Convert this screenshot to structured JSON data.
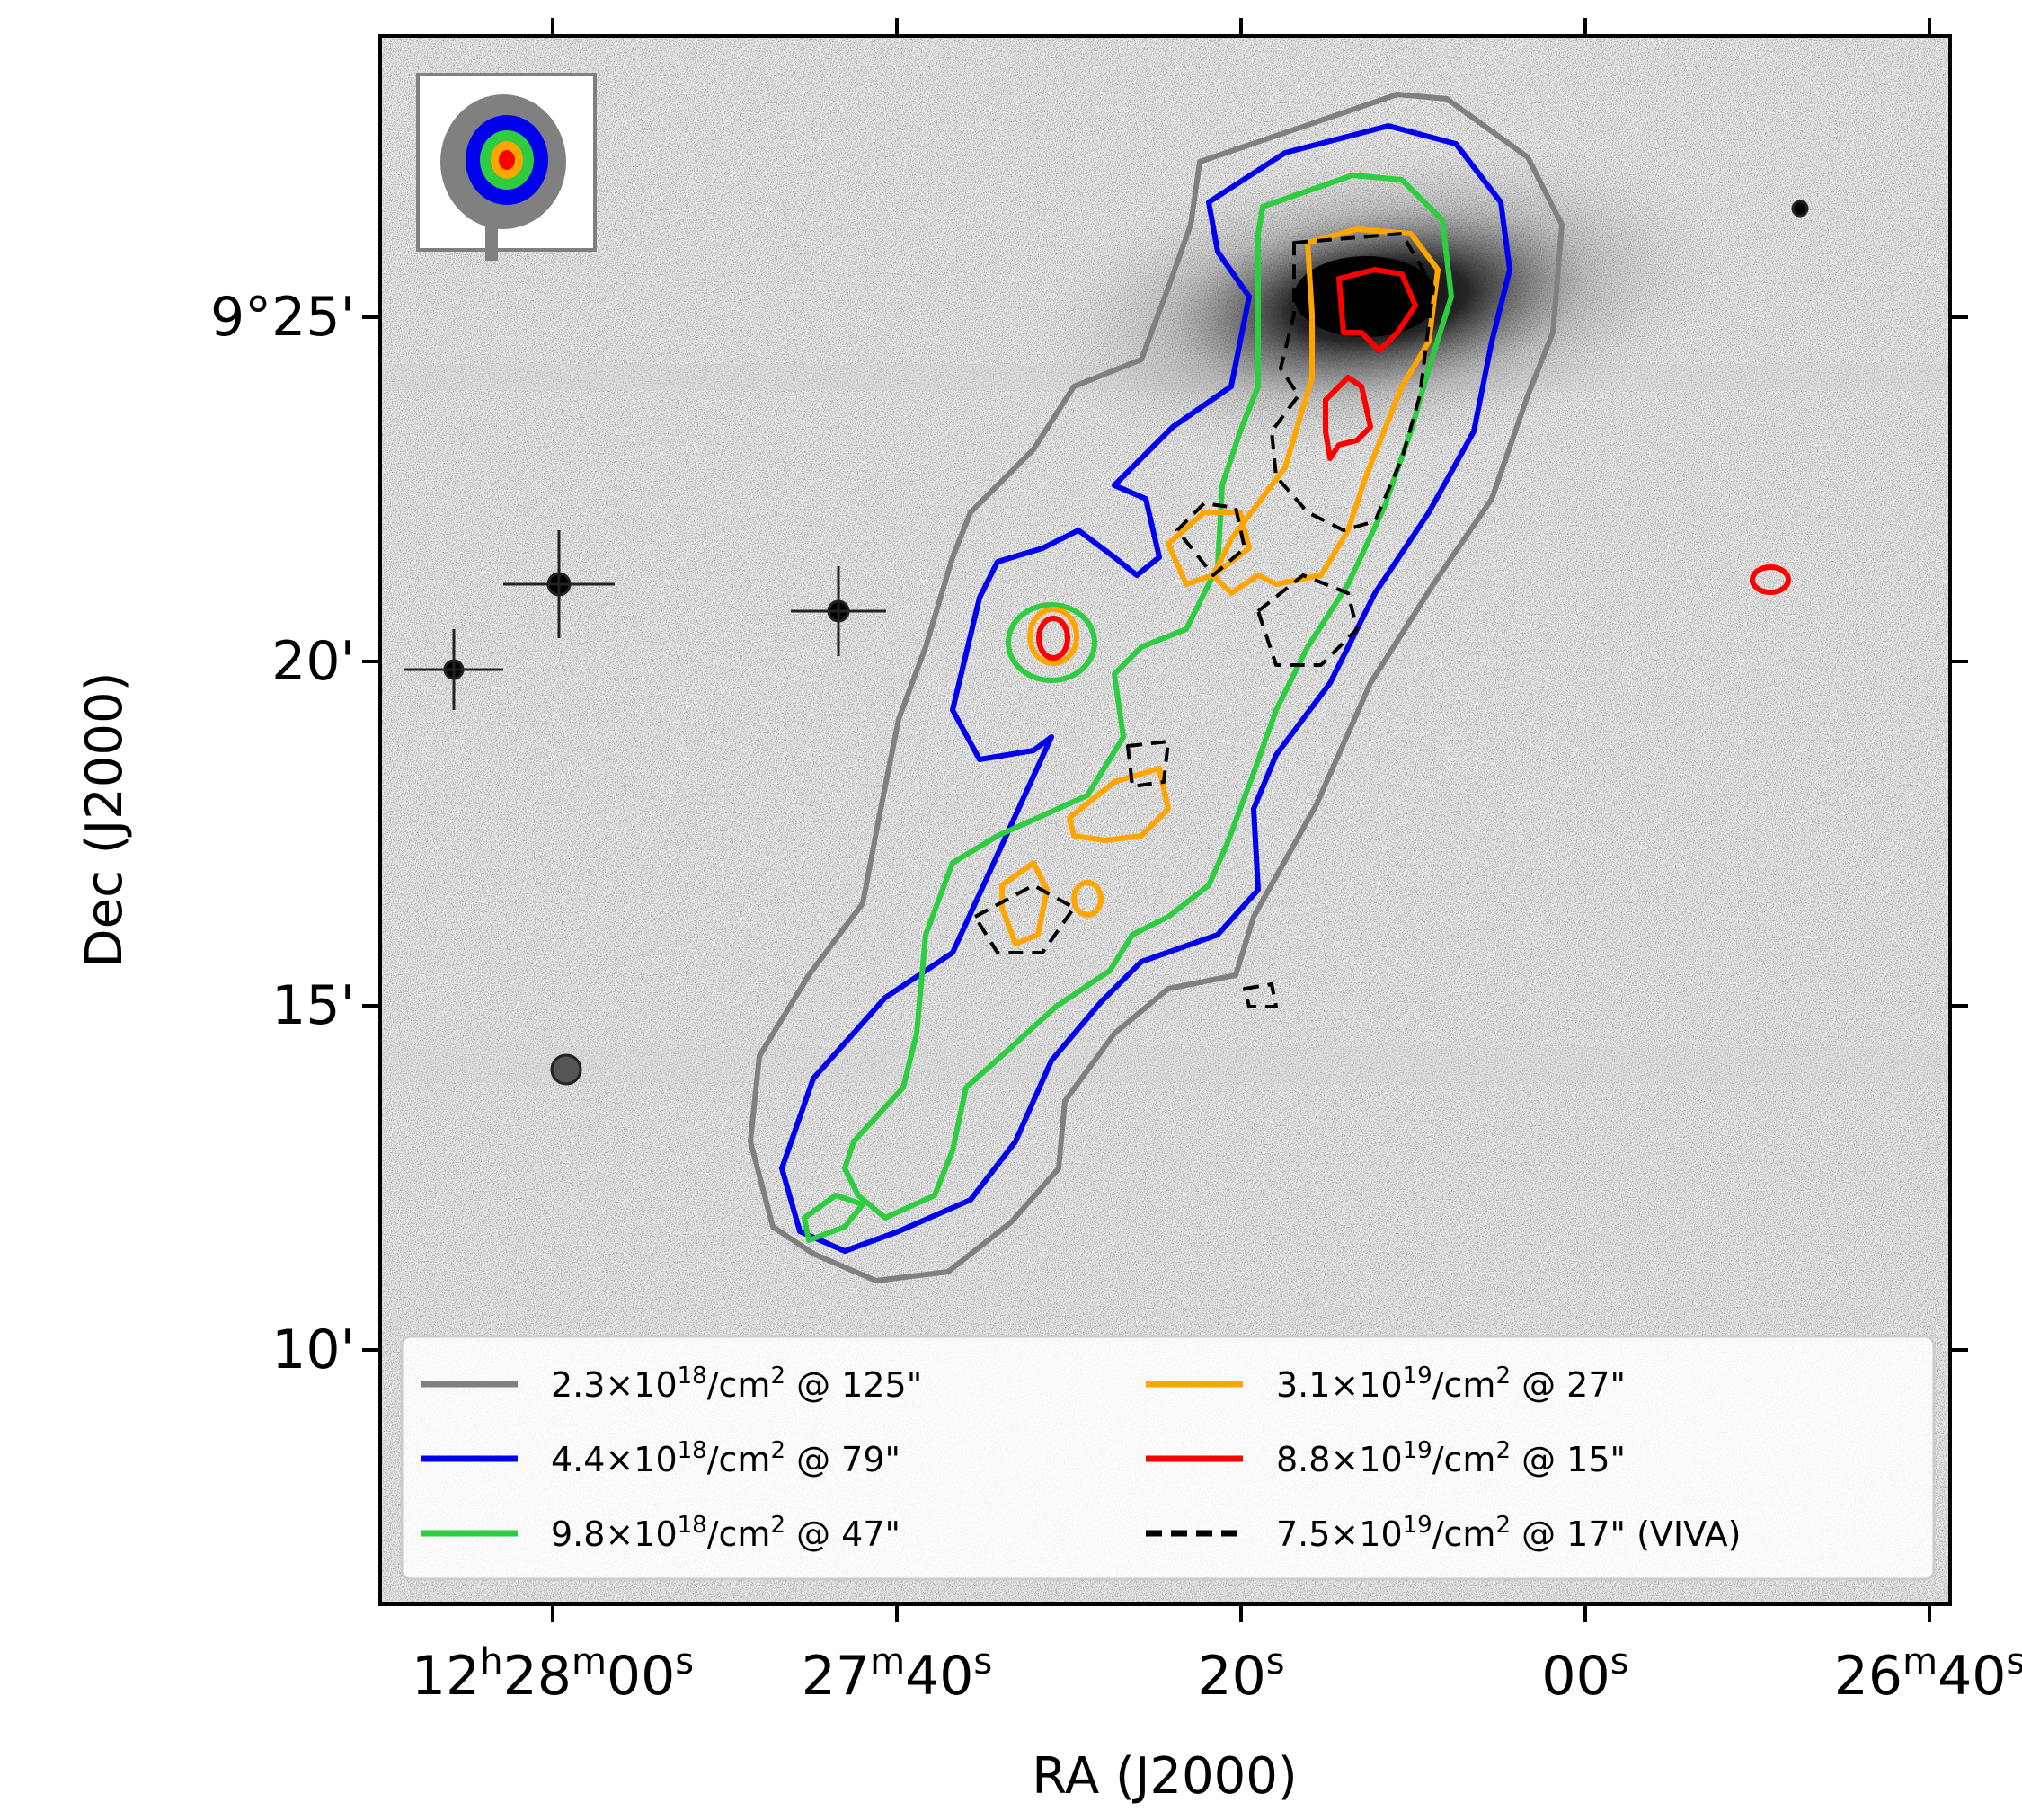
{
  "chart_data": {
    "type": "contour-on-image",
    "xlabel": "RA (J2000)",
    "ylabel": "Dec (J2000)",
    "x_ticks": [
      {
        "base": "12",
        "sup": "h",
        "base2": "28",
        "sup2": "m",
        "base3": "00",
        "sup3": "s",
        "value_s": 0
      },
      {
        "base": "27",
        "sup": "m",
        "base2": "40",
        "sup2": "s",
        "value_s": -20
      },
      {
        "base": "20",
        "sup": "s",
        "value_s": -40
      },
      {
        "base": "00",
        "sup": "s",
        "value_s": -60
      },
      {
        "base": "26",
        "sup": "m",
        "base2": "40",
        "sup2": "s",
        "value_s": -80
      }
    ],
    "y_ticks": [
      {
        "label": "9°25'",
        "value_arcmin": 25
      },
      {
        "label": "20'",
        "value_arcmin": 20
      },
      {
        "label": "15'",
        "value_arcmin": 15
      },
      {
        "label": "10'",
        "value_arcmin": 10
      }
    ],
    "legend_placement": "bottom",
    "legend": [
      {
        "level": "2.3×10",
        "exp": "18",
        "unit": "/cm",
        "unit_exp": "2",
        "beam": " @ 125\"",
        "color": "#808080",
        "style": "solid"
      },
      {
        "level": "4.4×10",
        "exp": "18",
        "unit": "/cm",
        "unit_exp": "2",
        "beam": " @ 79\"",
        "color": "#0000ee",
        "style": "solid"
      },
      {
        "level": "9.8×10",
        "exp": "18",
        "unit": "/cm",
        "unit_exp": "2",
        "beam": " @ 47\"",
        "color": "#2ecc40",
        "style": "solid"
      },
      {
        "level": "3.1×10",
        "exp": "19",
        "unit": "/cm",
        "unit_exp": "2",
        "beam": " @ 27\"",
        "color": "#ffa500",
        "style": "solid"
      },
      {
        "level": "8.8×10",
        "exp": "19",
        "unit": "/cm",
        "unit_exp": "2",
        "beam": " @ 15\"",
        "color": "#ff0000",
        "style": "solid"
      },
      {
        "level": "7.5×10",
        "exp": "19",
        "unit": "/cm",
        "unit_exp": "2",
        "beam": " @ 17\" (VIVA)",
        "color": "#000000",
        "style": "dashed"
      }
    ],
    "background": "grayscale optical image with stars and galaxy",
    "beam_inset": true
  }
}
